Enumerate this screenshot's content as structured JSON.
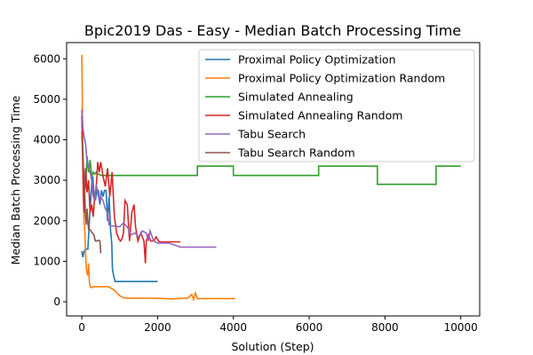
{
  "chart_data": {
    "type": "line",
    "title": "Bpic2019 Das - Easy - Median Batch Processing Time",
    "xlabel": "Solution (Step)",
    "ylabel": "Median Batch Processing Time",
    "xlim": [
      -400,
      10500
    ],
    "ylim": [
      -350,
      6400
    ],
    "xticks": [
      0,
      2000,
      4000,
      6000,
      8000,
      10000
    ],
    "yticks": [
      0,
      1000,
      2000,
      3000,
      4000,
      5000,
      6000
    ],
    "xtick_labels": [
      "0",
      "2000",
      "4000",
      "6000",
      "8000",
      "10000"
    ],
    "ytick_labels": [
      "0",
      "1000",
      "2000",
      "3000",
      "4000",
      "5000",
      "6000"
    ],
    "legend_position": "top-right",
    "grid": false,
    "series": [
      {
        "name": "Proximal Policy Optimization",
        "color": "#1f77b4",
        "x": [
          0,
          30,
          60,
          100,
          160,
          220,
          260,
          290,
          320,
          360,
          400,
          440,
          480,
          520,
          560,
          600,
          640,
          680,
          720,
          760,
          790,
          810,
          840,
          880,
          920,
          1000,
          1200,
          1500,
          1800,
          2000
        ],
        "y": [
          1250,
          1100,
          1250,
          1300,
          1300,
          2300,
          2900,
          3100,
          2700,
          2500,
          2750,
          2750,
          2400,
          2750,
          2600,
          2750,
          2750,
          2000,
          2600,
          1750,
          1450,
          800,
          650,
          500,
          500,
          500,
          500,
          500,
          500,
          500
        ]
      },
      {
        "name": "Proximal Policy Optimization Random",
        "color": "#ff7f0e",
        "x": [
          0,
          20,
          40,
          60,
          80,
          100,
          120,
          140,
          160,
          180,
          200,
          220,
          240,
          260,
          300,
          400,
          500,
          600,
          700,
          800,
          900,
          1000,
          1100,
          1200,
          1500,
          1800,
          2200,
          2400,
          2500,
          2800,
          2900,
          2950,
          3000,
          3050,
          3100,
          3500,
          4050
        ],
        "y": [
          6100,
          4500,
          2600,
          2000,
          1700,
          1200,
          800,
          700,
          650,
          950,
          500,
          400,
          350,
          350,
          370,
          370,
          370,
          370,
          370,
          320,
          250,
          150,
          100,
          90,
          90,
          90,
          80,
          70,
          80,
          90,
          180,
          60,
          220,
          70,
          80,
          80,
          80
        ]
      },
      {
        "name": "Simulated Annealing",
        "color": "#2ca02c",
        "x": [
          0,
          30,
          60,
          100,
          140,
          180,
          220,
          260,
          300,
          340,
          380,
          420,
          460,
          500,
          3050,
          3050,
          4000,
          4000,
          6250,
          6250,
          7800,
          7800,
          9350,
          9350,
          10000
        ],
        "y": [
          4200,
          3700,
          3000,
          2800,
          3600,
          3200,
          3500,
          3100,
          3200,
          3150,
          3200,
          3150,
          3150,
          3120,
          3120,
          3350,
          3350,
          3120,
          3120,
          3350,
          3350,
          2900,
          2900,
          3350,
          3350
        ]
      },
      {
        "name": "Simulated Annealing Random",
        "color": "#d62728",
        "x": [
          0,
          30,
          60,
          100,
          140,
          180,
          220,
          260,
          300,
          340,
          380,
          420,
          460,
          500,
          560,
          620,
          680,
          740,
          800,
          860,
          920,
          980,
          1020,
          1060,
          1100,
          1140,
          1200,
          1260,
          1320,
          1380,
          1420,
          1480,
          1560,
          1640,
          1680,
          1700,
          1760,
          1820,
          1900,
          1960,
          2040,
          2200,
          2400,
          2600
        ],
        "y": [
          4600,
          3200,
          2200,
          3300,
          2700,
          3000,
          2200,
          2400,
          2100,
          2600,
          2800,
          3450,
          3200,
          3450,
          3100,
          2850,
          3300,
          2600,
          3200,
          2100,
          1700,
          1550,
          1500,
          1550,
          1700,
          2500,
          2400,
          1500,
          2200,
          2400,
          1850,
          1500,
          1700,
          1500,
          950,
          1500,
          1650,
          1500,
          1500,
          1600,
          1480,
          1480,
          1480,
          1480
        ]
      },
      {
        "name": "Tabu Search",
        "color": "#9467bd",
        "x": [
          0,
          30,
          60,
          100,
          140,
          180,
          220,
          260,
          300,
          340,
          380,
          420,
          460,
          500,
          560,
          620,
          680,
          720,
          800,
          900,
          1000,
          1100,
          1200,
          1300,
          1400,
          1500,
          1600,
          1700,
          1760,
          1800,
          1900,
          2000,
          2300,
          2600,
          3000,
          3550
        ],
        "y": [
          4750,
          4300,
          4100,
          3900,
          3450,
          3350,
          3200,
          3000,
          2600,
          2500,
          2900,
          2700,
          2500,
          2600,
          2500,
          2300,
          2200,
          1900,
          1870,
          1870,
          1850,
          1950,
          1850,
          1650,
          1700,
          1600,
          1750,
          1700,
          1500,
          1750,
          1500,
          1450,
          1450,
          1350,
          1350,
          1350
        ]
      },
      {
        "name": "Tabu Search Random",
        "color": "#8c564b",
        "x": [
          0,
          20,
          40,
          60,
          80,
          100,
          120,
          140,
          160,
          180,
          200,
          240,
          280,
          320,
          360,
          400,
          440,
          480,
          500
        ],
        "y": [
          4100,
          3800,
          3300,
          3100,
          2600,
          2100,
          1900,
          2300,
          2000,
          1800,
          1800,
          1750,
          1700,
          1650,
          1500,
          1500,
          1520,
          1500,
          1200
        ]
      }
    ]
  }
}
